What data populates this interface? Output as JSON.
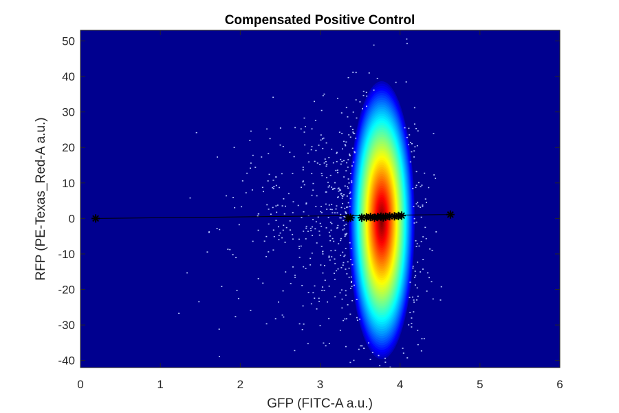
{
  "chart_data": {
    "type": "scatter",
    "title": "Compensated Positive Control",
    "xlabel": "GFP (FITC-A a.u.)",
    "ylabel": "RFP (PE-Texas_Red-A a.u.)",
    "xlim": [
      0,
      6
    ],
    "ylim": [
      -42,
      53
    ],
    "xticks": [
      0,
      1,
      2,
      3,
      4,
      5,
      6
    ],
    "xtick_labels": [
      "0",
      "1",
      "2",
      "3",
      "4",
      "5",
      "6"
    ],
    "yticks": [
      -40,
      -30,
      -20,
      -10,
      0,
      10,
      20,
      30,
      40,
      50
    ],
    "ytick_labels": [
      "-40",
      "-30",
      "-20",
      "-10",
      "0",
      "10",
      "20",
      "30",
      "40",
      "50"
    ],
    "grid": false,
    "background_color": "#00008f",
    "density": {
      "type": "heatmap",
      "colormap": "jet",
      "center": [
        3.77,
        -0.5
      ],
      "spread": [
        0.23,
        14.5
      ],
      "colors": [
        "#00008f",
        "#0000ff",
        "#0080ff",
        "#00ffff",
        "#80ff80",
        "#ffff00",
        "#ff8000",
        "#ff0000",
        "#800000"
      ]
    },
    "series": [
      {
        "marker": "asterisk",
        "color": "#000000",
        "x": [
          0.19,
          3.35,
          3.38,
          3.52,
          3.58,
          3.63,
          3.68,
          3.72,
          3.76,
          3.79,
          3.82,
          3.87,
          3.93,
          3.98,
          4.02,
          4.63
        ],
        "y": [
          0.0,
          0.1,
          0.2,
          0.2,
          0.3,
          0.4,
          0.2,
          0.4,
          0.5,
          0.3,
          0.5,
          0.6,
          0.6,
          0.7,
          0.8,
          1.1
        ]
      }
    ],
    "trend_line": {
      "x": [
        0.19,
        4.63
      ],
      "y": [
        0.0,
        1.1
      ],
      "color": "#000000"
    }
  }
}
